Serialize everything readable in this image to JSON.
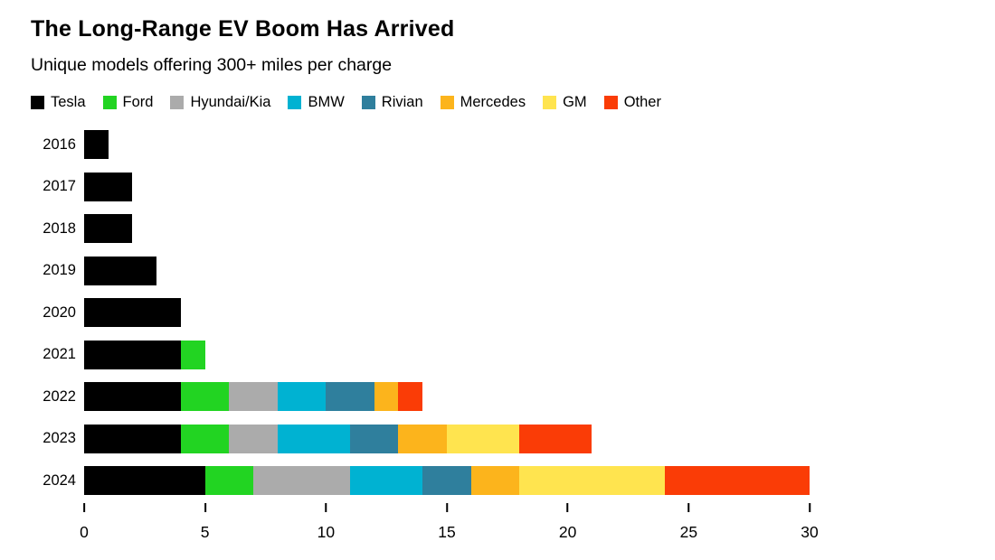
{
  "title": "The Long-Range EV Boom Has Arrived",
  "subtitle": "Unique models offering 300+ miles per charge",
  "chart_data": {
    "type": "bar",
    "orientation": "horizontal",
    "stacked": true,
    "grid": false,
    "legend_position": "top",
    "categories": [
      "2016",
      "2017",
      "2018",
      "2019",
      "2020",
      "2021",
      "2022",
      "2023",
      "2024"
    ],
    "series": [
      {
        "name": "Tesla",
        "color": "#000000",
        "values": [
          1,
          2,
          2,
          3,
          4,
          4,
          4,
          4,
          5
        ]
      },
      {
        "name": "Ford",
        "color": "#22d422",
        "values": [
          0,
          0,
          0,
          0,
          0,
          1,
          2,
          2,
          2
        ]
      },
      {
        "name": "Hyundai/Kia",
        "color": "#ababab",
        "values": [
          0,
          0,
          0,
          0,
          0,
          0,
          2,
          2,
          4
        ]
      },
      {
        "name": "BMW",
        "color": "#00b2d2",
        "values": [
          0,
          0,
          0,
          0,
          0,
          0,
          2,
          3,
          3
        ]
      },
      {
        "name": "Rivian",
        "color": "#2f7f9d",
        "values": [
          0,
          0,
          0,
          0,
          0,
          0,
          2,
          2,
          2
        ]
      },
      {
        "name": "Mercedes",
        "color": "#fcb41c",
        "values": [
          0,
          0,
          0,
          0,
          0,
          0,
          1,
          2,
          2
        ]
      },
      {
        "name": "GM",
        "color": "#ffe44f",
        "values": [
          0,
          0,
          0,
          0,
          0,
          0,
          0,
          3,
          6
        ]
      },
      {
        "name": "Other",
        "color": "#fa3c06",
        "values": [
          0,
          0,
          0,
          0,
          0,
          0,
          1,
          3,
          6
        ]
      }
    ],
    "totals": [
      1,
      2,
      2,
      3,
      4,
      5,
      14,
      21,
      30
    ],
    "xlim": [
      0,
      30
    ],
    "x_ticks": [
      0,
      5,
      10,
      15,
      20,
      25,
      30
    ]
  }
}
